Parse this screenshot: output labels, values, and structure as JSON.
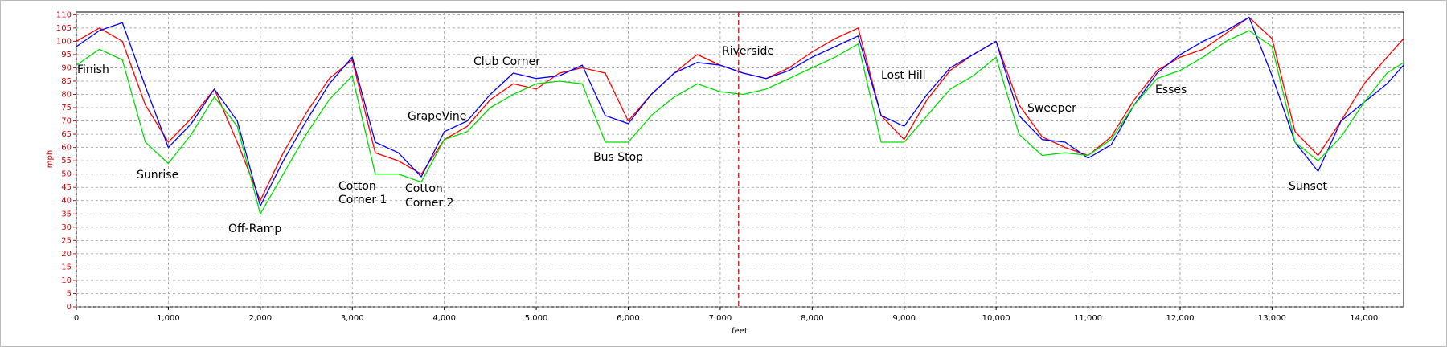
{
  "chart_data": {
    "type": "line",
    "x_label": "feet",
    "y_label": "mph",
    "x": [
      0,
      250,
      500,
      750,
      1000,
      1250,
      1500,
      1750,
      2000,
      2250,
      2500,
      2750,
      3000,
      3250,
      3500,
      3750,
      4000,
      4250,
      4500,
      4750,
      5000,
      5250,
      5500,
      5750,
      6000,
      6250,
      6500,
      6750,
      7000,
      7250,
      7500,
      7750,
      8000,
      8250,
      8500,
      8750,
      9000,
      9250,
      9500,
      9750,
      10000,
      10250,
      10500,
      10750,
      11000,
      11250,
      11500,
      11750,
      12000,
      12250,
      12500,
      12750,
      13000,
      13250,
      13500,
      13750,
      14000,
      14250,
      14430
    ],
    "series": [
      {
        "color": "#ff0000",
        "values": [
          100,
          105,
          100,
          76,
          62,
          71,
          82,
          62,
          40,
          58,
          73,
          86,
          93,
          58,
          55,
          50,
          63,
          68,
          78,
          84,
          82,
          88,
          90,
          88,
          70,
          80,
          88,
          95,
          91,
          88,
          86,
          90,
          96,
          101,
          105,
          72,
          63,
          78,
          89,
          95,
          100,
          76,
          64,
          60,
          57,
          64,
          78,
          89,
          94,
          97,
          103,
          109,
          101,
          66,
          57,
          70,
          84,
          94,
          101
        ]
      },
      {
        "color": "#0000ff",
        "values": [
          98,
          104,
          107,
          83,
          60,
          69,
          82,
          70,
          38,
          55,
          70,
          84,
          94,
          62,
          58,
          49,
          66,
          70,
          80,
          88,
          86,
          87,
          91,
          72,
          69,
          80,
          88,
          92,
          91,
          88,
          86,
          89,
          94,
          98,
          102,
          72,
          68,
          80,
          90,
          95,
          100,
          72,
          63,
          62,
          56,
          61,
          76,
          88,
          95,
          100,
          104,
          109,
          87,
          62,
          51,
          70,
          77,
          84,
          91
        ]
      },
      {
        "color": "#00dd00",
        "values": [
          91,
          97,
          93,
          62,
          54,
          65,
          79,
          68,
          35,
          50,
          65,
          78,
          87,
          50,
          50,
          47,
          63,
          66,
          75,
          80,
          84,
          85,
          84,
          62,
          62,
          72,
          79,
          84,
          81,
          80,
          82,
          86,
          90,
          94,
          99,
          62,
          62,
          72,
          82,
          87,
          94,
          65,
          57,
          58,
          57,
          63,
          76,
          86,
          89,
          94,
          100,
          104,
          98,
          62,
          55,
          64,
          77,
          88,
          92
        ]
      }
    ],
    "annotations": [
      "Finish",
      "Sunrise",
      "Off-Ramp",
      "Cotton",
      "Corner 1",
      "Cotton",
      "Corner 2",
      "GrapeVine",
      "Club Corner",
      "Bus Stop",
      "Riverside",
      "Lost Hill",
      "Sweeper",
      "Esses",
      "Sunset"
    ],
    "cursor_x": 7200,
    "cursor_color": "#cc0000",
    "xlim": [
      0,
      14430
    ],
    "ylim": [
      0,
      111
    ],
    "xticks": [
      0,
      {
        "value": 1000,
        "label": "1,000"
      },
      {
        "value": 2000,
        "label": "2,000"
      },
      {
        "value": 3000,
        "label": "3,000"
      },
      {
        "value": 4000,
        "label": "4,000"
      },
      {
        "value": 5000,
        "label": "5,000"
      },
      {
        "value": 6000,
        "label": "6,000"
      },
      {
        "value": 7000,
        "label": "7,000"
      },
      {
        "value": 8000,
        "label": "8,000"
      },
      {
        "value": 9000,
        "label": "9,000"
      },
      {
        "value": 10000,
        "label": "10,000"
      },
      {
        "value": 11000,
        "label": "11,000"
      },
      {
        "value": 12000,
        "label": "12,000"
      },
      {
        "value": 13000,
        "label": "13,000"
      },
      {
        "value": 14000,
        "label": "14,000"
      }
    ],
    "yticks": [
      0,
      5,
      10,
      15,
      20,
      25,
      30,
      35,
      40,
      45,
      50,
      55,
      60,
      65,
      70,
      75,
      80,
      85,
      90,
      95,
      100,
      105,
      110
    ],
    "grid": true
  }
}
